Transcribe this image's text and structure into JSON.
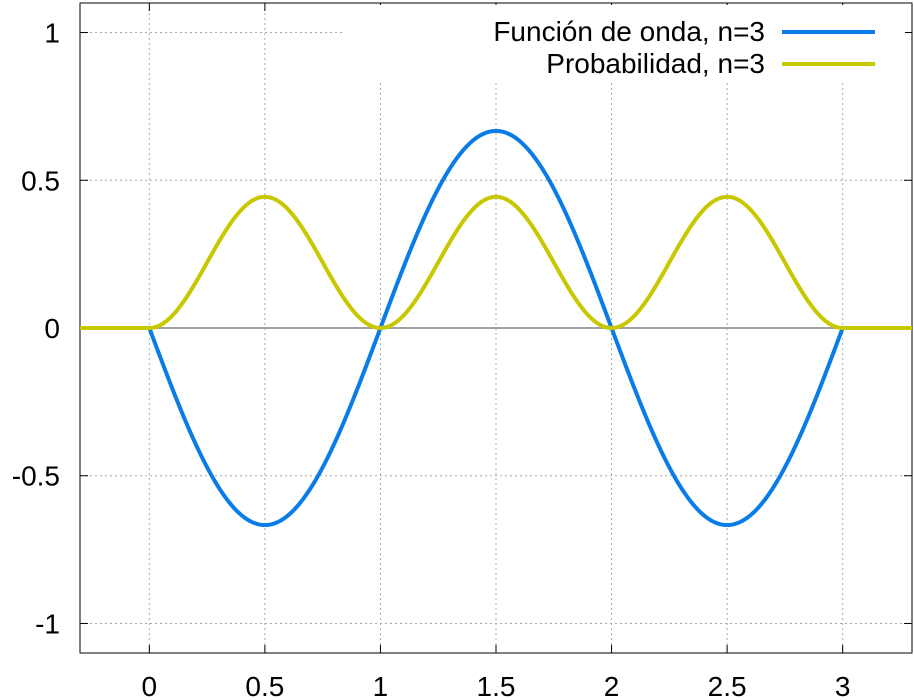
{
  "chart_data": {
    "type": "line",
    "title": "",
    "xlabel": "",
    "ylabel": "",
    "xlim": [
      -0.3,
      3.3
    ],
    "ylim": [
      -1.1,
      1.1
    ],
    "x_ticks": [
      0,
      0.5,
      1,
      1.5,
      2,
      2.5,
      3
    ],
    "x_tick_labels": [
      "0",
      "0.5",
      "1",
      "1.5",
      "2",
      "2.5",
      "3"
    ],
    "y_ticks": [
      -1,
      -0.5,
      0,
      0.5,
      1
    ],
    "y_tick_labels": [
      "-1",
      "-0.5",
      "0",
      "0.5",
      "1"
    ],
    "grid": true,
    "zero_line": true,
    "legend_position": "top-right",
    "well_interval": [
      0,
      3
    ],
    "series": [
      {
        "name": "Función de onda, n=3",
        "color": "#0a7ce8",
        "x": [
          -0.3,
          0,
          0.25,
          0.5,
          0.75,
          1,
          1.25,
          1.5,
          1.75,
          2,
          2.25,
          2.5,
          2.75,
          3,
          3.3
        ],
        "values": [
          0,
          0,
          -0.471,
          -0.667,
          -0.471,
          0,
          0.471,
          0.667,
          0.471,
          0,
          -0.471,
          -0.667,
          -0.471,
          0,
          0
        ]
      },
      {
        "name": "Probabilidad, n=3",
        "color": "#c8c800",
        "x": [
          -0.3,
          0,
          0.25,
          0.5,
          0.75,
          1,
          1.25,
          1.5,
          1.75,
          2,
          2.25,
          2.5,
          2.75,
          3,
          3.3
        ],
        "values": [
          0,
          0,
          0.222,
          0.444,
          0.222,
          0,
          0.222,
          0.444,
          0.222,
          0,
          0.222,
          0.444,
          0.222,
          0,
          0
        ]
      }
    ]
  }
}
